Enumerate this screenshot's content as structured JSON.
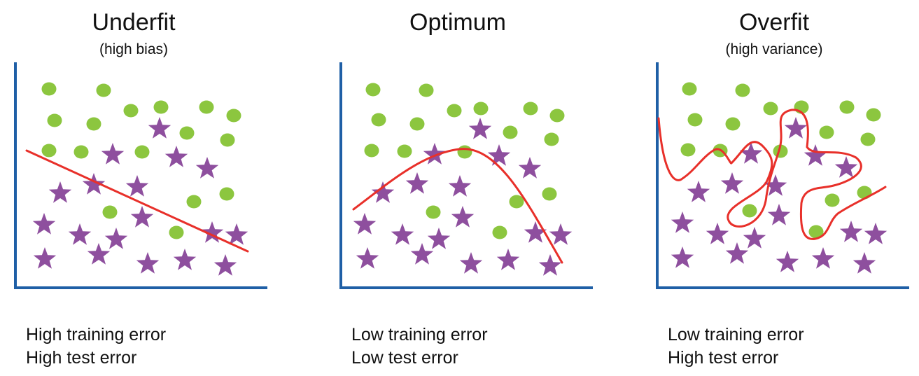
{
  "panels": [
    {
      "title": "Underfit",
      "subtitle": "(high bias)",
      "caption": [
        "High training error",
        "High test error"
      ]
    },
    {
      "title": "Optimum",
      "subtitle": "",
      "caption": [
        "Low training error",
        "Low test error"
      ]
    },
    {
      "title": "Overfit",
      "subtitle": "(high variance)",
      "caption": [
        "Low training error",
        "High test error"
      ]
    }
  ],
  "colors": {
    "circle": "#8cc63f",
    "star": "#8e4f9e",
    "fit_curve": "#e8302a",
    "axis": "#1f5fa6"
  },
  "icons": {
    "circle": "circle-marker",
    "star": "star-marker"
  }
}
